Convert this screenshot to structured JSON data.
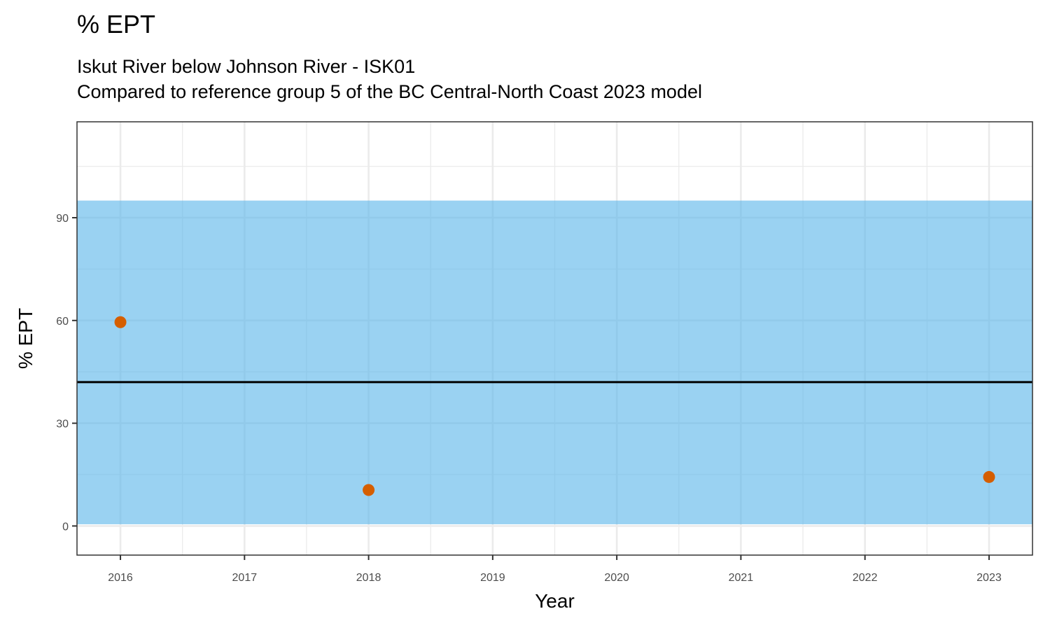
{
  "chart_data": {
    "type": "scatter",
    "title": "% EPT",
    "subtitles": [
      "Iskut River below Johnson River - ISK01",
      "Compared to reference group 5 of the BC Central-North Coast 2023 model"
    ],
    "xlabel": "Year",
    "ylabel": "% EPT",
    "xlim": [
      2015.65,
      2023.35
    ],
    "ylim": [
      -8.5,
      118
    ],
    "x_ticks": [
      2016,
      2017,
      2018,
      2019,
      2020,
      2021,
      2022,
      2023
    ],
    "y_ticks": [
      0,
      30,
      60,
      90
    ],
    "grid": true,
    "reference_band": {
      "ymin": 0.5,
      "ymax": 95,
      "color": "#56b4e9"
    },
    "reference_line": {
      "y": 42,
      "color": "#000000"
    },
    "series": [
      {
        "x": [
          2016,
          2018,
          2023
        ],
        "y": [
          59.5,
          10.5,
          14.3
        ],
        "color": "#d55e00"
      }
    ]
  }
}
